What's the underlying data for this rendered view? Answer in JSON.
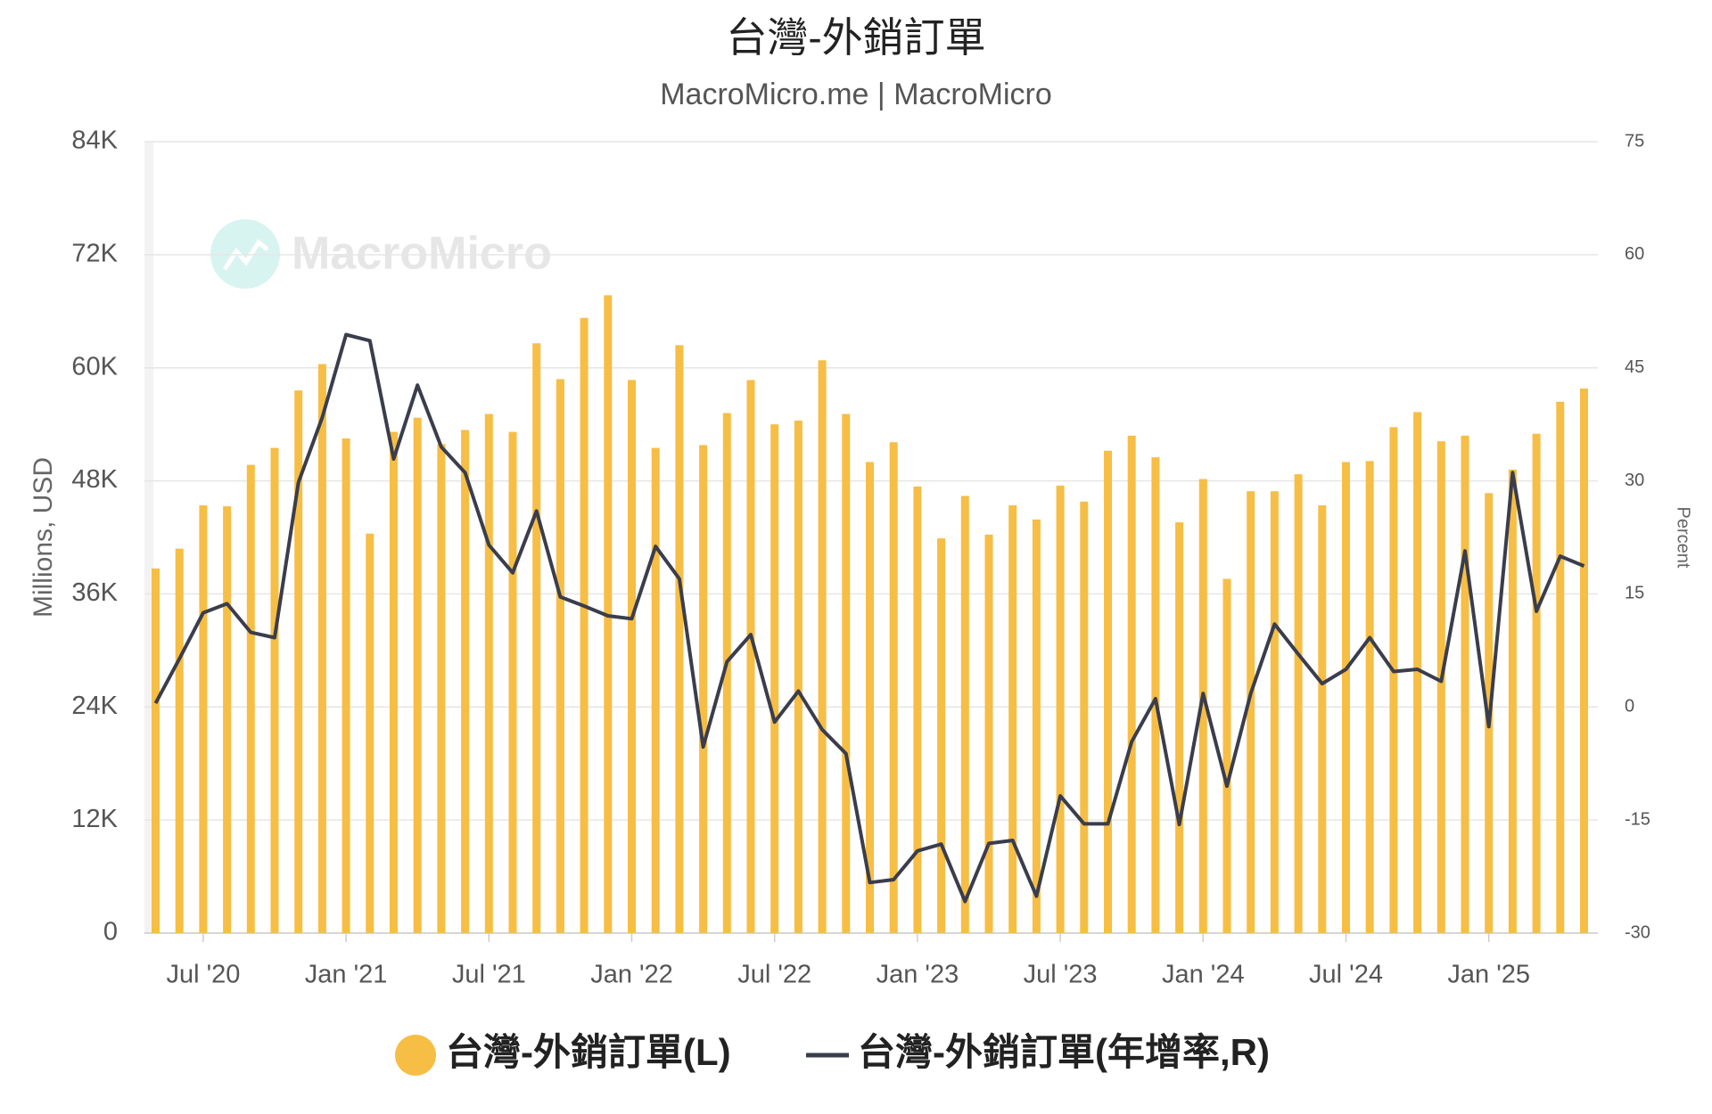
{
  "chart_data": {
    "type": "bar_line",
    "title": "台灣-外銷訂單",
    "subtitle": "MacroMicro.me | MacroMicro",
    "watermark": "MacroMicro",
    "ylabel": "Millions, USD",
    "y2label": "Percent",
    "categories": [
      null,
      null,
      "Jul '20",
      null,
      null,
      null,
      null,
      null,
      "Jan '21",
      null,
      null,
      null,
      null,
      null,
      "Jul '21",
      null,
      null,
      null,
      null,
      null,
      "Jan '22",
      null,
      null,
      null,
      null,
      null,
      "Jul '22",
      null,
      null,
      null,
      null,
      null,
      "Jan '23",
      null,
      null,
      null,
      null,
      null,
      "Jul '23",
      null,
      null,
      null,
      null,
      null,
      "Jan '24",
      null,
      null,
      null,
      null,
      null,
      "Jul '24",
      null,
      null,
      null,
      null,
      null,
      "Jan '25",
      null,
      null,
      null,
      null
    ],
    "series": [
      {
        "name": "台灣-外銷訂單(L)",
        "type": "bar",
        "color": "#f6be45",
        "axis": "y",
        "values": [
          38700,
          40800,
          45400,
          45300,
          49700,
          51500,
          57600,
          60400,
          52500,
          42400,
          53200,
          54700,
          51900,
          53400,
          55100,
          53200,
          62600,
          58800,
          65300,
          67700,
          58700,
          51500,
          62400,
          51800,
          55200,
          58700,
          54000,
          54400,
          60800,
          55100,
          50000,
          52100,
          47400,
          41900,
          46400,
          42300,
          45400,
          43900,
          47500,
          45800,
          51200,
          52800,
          50500,
          43600,
          48200,
          37600,
          46900,
          46900,
          48700,
          45400,
          50000,
          50100,
          53700,
          55300,
          52200,
          52800,
          46700,
          49200,
          53000,
          56400,
          57800
        ]
      },
      {
        "name": "台灣-外銷訂單(年增率,R)",
        "type": "line",
        "color": "#3a3d4c",
        "axis": "y2",
        "values": [
          0.5,
          6.4,
          12.5,
          13.7,
          9.9,
          9.2,
          29.8,
          38.4,
          49.4,
          48.6,
          32.9,
          42.7,
          34.5,
          31.1,
          21.5,
          17.8,
          26.0,
          14.6,
          13.4,
          12.1,
          11.7,
          21.3,
          17.0,
          -5.3,
          6.0,
          9.6,
          -2.0,
          2.1,
          -3.0,
          -6.2,
          -23.3,
          -22.9,
          -19.1,
          -18.2,
          -25.8,
          -18.1,
          -17.7,
          -25.1,
          -11.8,
          -15.5,
          -15.5,
          -4.6,
          1.1,
          -15.6,
          1.8,
          -10.5,
          1.8,
          11.0,
          7.0,
          3.1,
          5.0,
          9.2,
          4.7,
          5.0,
          3.4,
          20.7,
          -2.6,
          31.1,
          12.7,
          20.0,
          18.7
        ]
      }
    ],
    "ylim": [
      0,
      84000
    ],
    "yticks": [
      0,
      {
        "value": 12000,
        "label": "12K"
      },
      {
        "value": 24000,
        "label": "24K"
      },
      {
        "value": 36000,
        "label": "36K"
      },
      {
        "value": 48000,
        "label": "48K"
      },
      {
        "value": 60000,
        "label": "60K"
      },
      {
        "value": 72000,
        "label": "72K"
      },
      {
        "value": 84000,
        "label": "84K"
      }
    ],
    "y2lim": [
      -30,
      75
    ],
    "y2ticks": [
      -30,
      -15,
      0,
      15,
      30,
      45,
      60,
      75
    ],
    "grid": true,
    "legend": "bottom"
  }
}
